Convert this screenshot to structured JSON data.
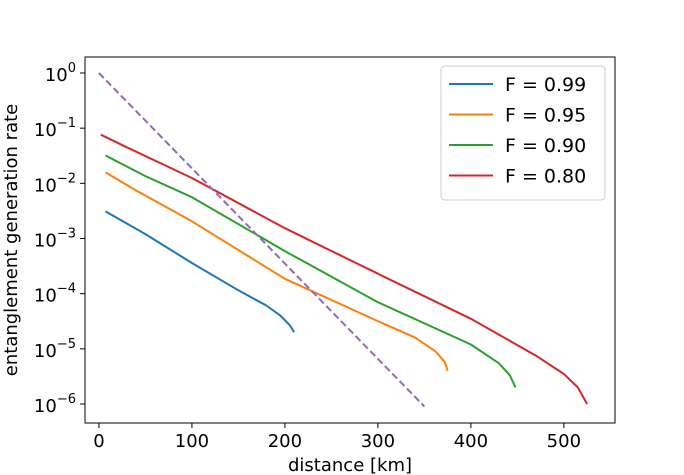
{
  "chart_data": {
    "type": "line",
    "xlabel": "distance [km]",
    "ylabel": "entanglement generation rate",
    "xlim": [
      -15,
      555
    ],
    "ylim": [
      1e-06,
      1
    ],
    "yscale": "log",
    "legend_position": "top-right",
    "x_ticks": [
      0,
      100,
      200,
      300,
      400,
      500
    ],
    "y_ticks": [
      {
        "base": "10",
        "exp": "0"
      },
      {
        "base": "10",
        "exp": "−1"
      },
      {
        "base": "10",
        "exp": "−2"
      },
      {
        "base": "10",
        "exp": "−3"
      },
      {
        "base": "10",
        "exp": "−4"
      },
      {
        "base": "10",
        "exp": "−5"
      },
      {
        "base": "10",
        "exp": "−6"
      }
    ],
    "series": [
      {
        "name": "F = 0.99",
        "color": "#1f77b4",
        "style": "solid",
        "x": [
          7,
          50,
          100,
          150,
          180,
          195,
          205,
          210
        ],
        "y": [
          0.0031,
          0.0012,
          0.00036,
          0.000115,
          6.1e-05,
          4e-05,
          2.7e-05,
          2e-05
        ]
      },
      {
        "name": "F = 0.95",
        "color": "#ff7f0e",
        "style": "solid",
        "x": [
          7,
          40,
          100,
          200,
          300,
          340,
          362,
          372,
          375
        ],
        "y": [
          0.0158,
          0.0074,
          0.00205,
          0.000186,
          3.18e-05,
          1.6e-05,
          9e-06,
          5.8e-06,
          4e-06
        ]
      },
      {
        "name": "F = 0.90",
        "color": "#2ca02c",
        "style": "solid",
        "x": [
          7,
          50,
          100,
          200,
          300,
          400,
          430,
          442,
          448
        ],
        "y": [
          0.032,
          0.0135,
          0.0056,
          0.00059,
          7e-05,
          1.2e-05,
          5.5e-06,
          3.3e-06,
          2e-06
        ]
      },
      {
        "name": "F = 0.80",
        "color": "#d62728",
        "style": "solid",
        "x": [
          2,
          30,
          100,
          200,
          300,
          400,
          470,
          500,
          515,
          525
        ],
        "y": [
          0.076,
          0.045,
          0.0125,
          0.00154,
          0.00023,
          3.5e-05,
          7.5e-06,
          3.5e-06,
          2e-06,
          1e-06
        ]
      },
      {
        "name": "",
        "color": "#9467bd",
        "style": "dashed",
        "x": [
          0,
          350
        ],
        "y": [
          1.0,
          9e-07
        ]
      }
    ]
  }
}
